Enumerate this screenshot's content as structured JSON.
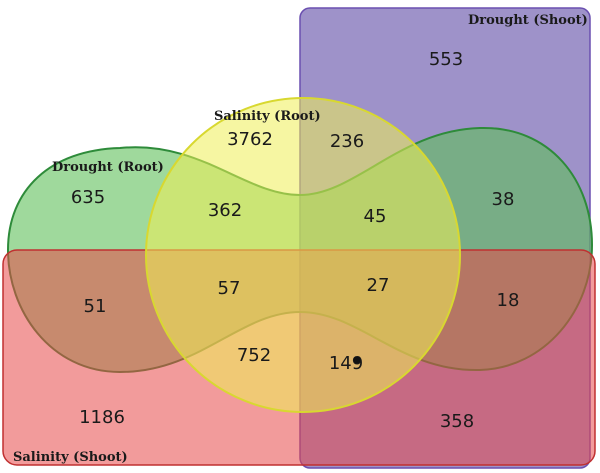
{
  "sets": {
    "drought_shoot": {
      "label": "Drought (Shoot)",
      "color": "#8d7fbf"
    },
    "salinity_shoot": {
      "label": "Salinity (Shoot)",
      "color": "#ee6e6e"
    },
    "drought_root": {
      "label": "Drought (Root)",
      "color": "#7cc46a"
    },
    "salinity_root": {
      "label": "Salinity (Root)",
      "color": "#f1f16e"
    }
  },
  "regions": {
    "ds_only": "553",
    "ss_only": "1186",
    "ds_ss": "358",
    "dr_only": "635",
    "sr_only": "3762",
    "sr_ds": "236",
    "dr_ds": "38",
    "dr_sr": "362",
    "dr_sr_ds": "45",
    "dr_ss": "51",
    "dr_ss_ds": "18",
    "dr_sr_ss": "57",
    "all_four": "27",
    "sr_ss": "752",
    "sr_ss_ds": "149"
  }
}
